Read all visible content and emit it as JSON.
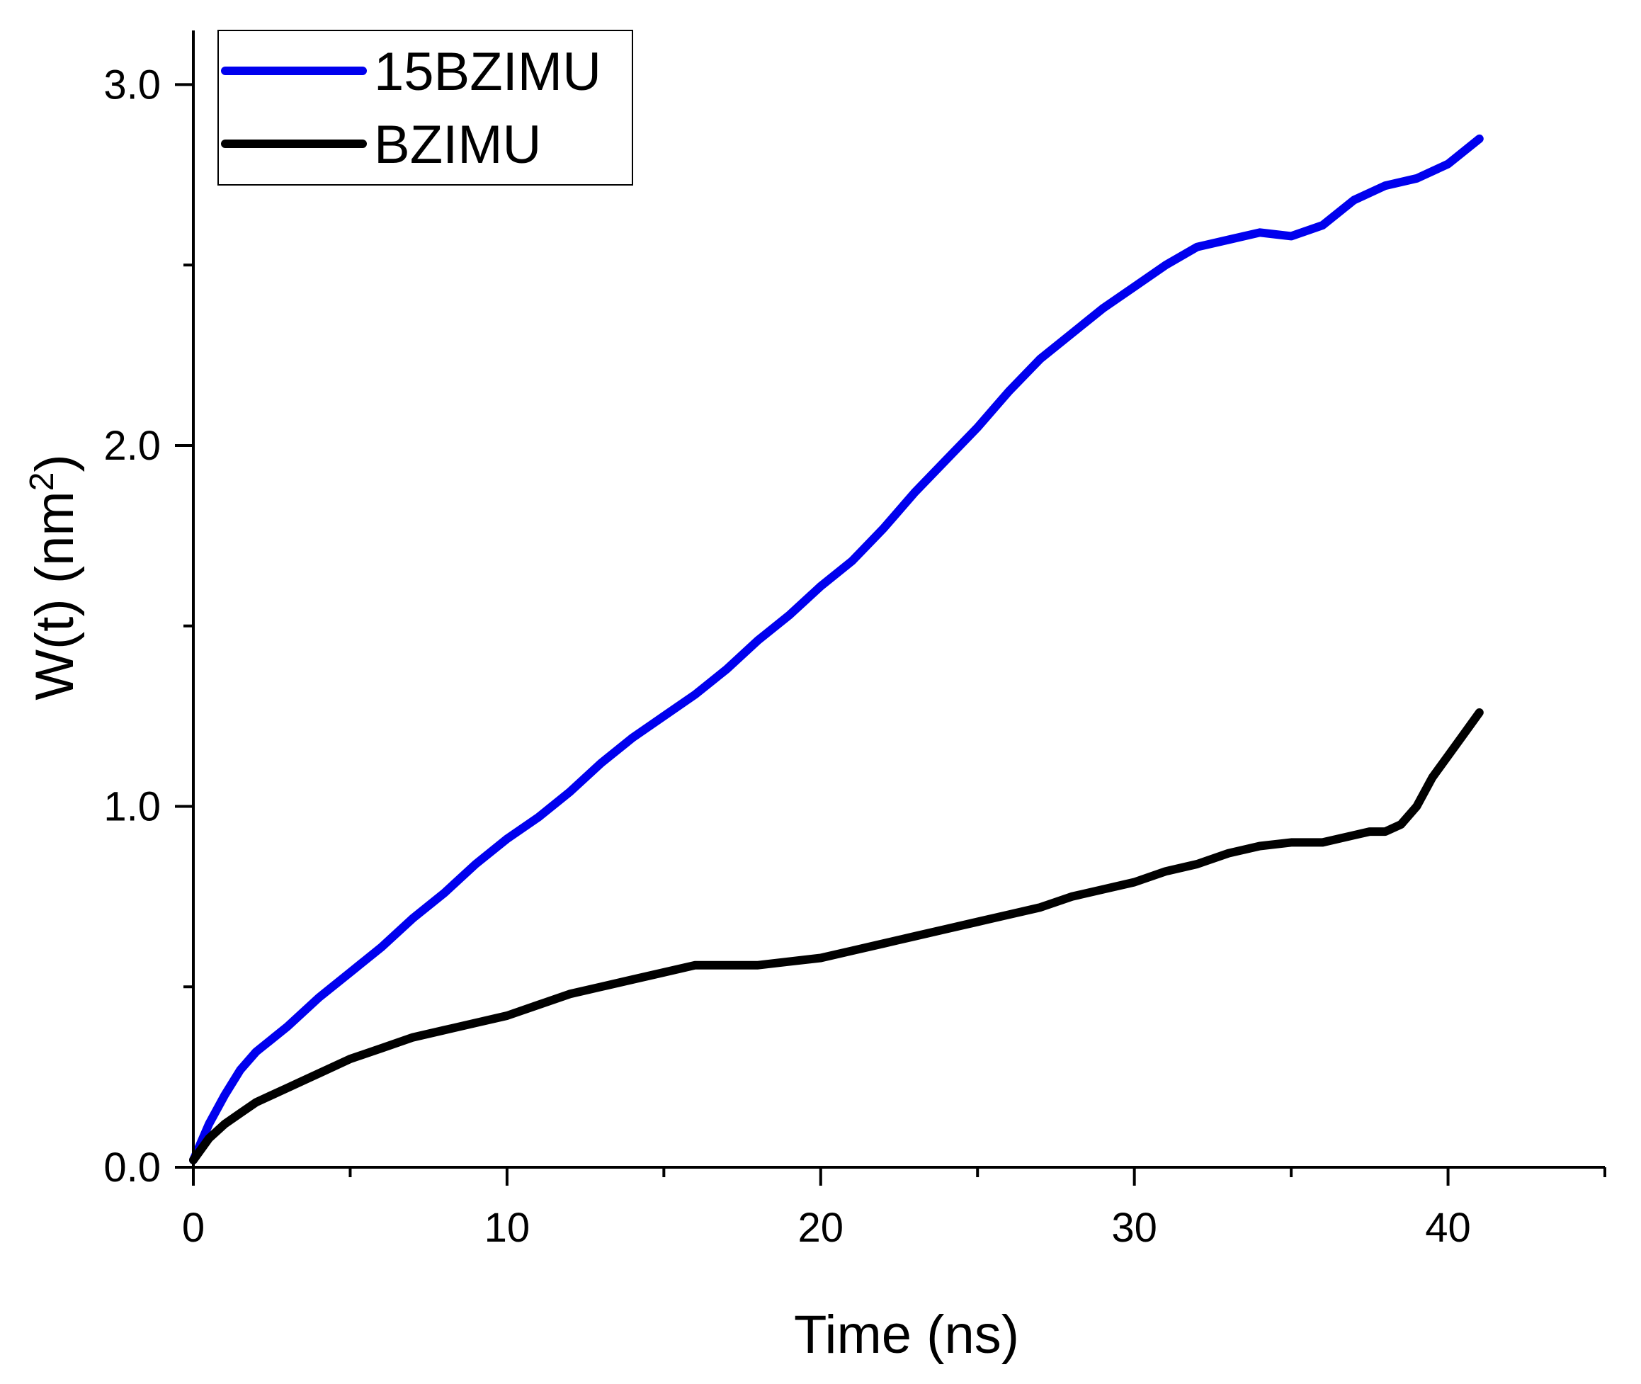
{
  "chart_data": {
    "type": "line",
    "title": "",
    "xlabel": "Time (ns)",
    "ylabel_text": "W(t) (nm",
    "ylabel_sup": "2",
    "ylabel_close": ")",
    "xlim": [
      0,
      45
    ],
    "ylim": [
      0,
      3.15
    ],
    "xticks": [
      0,
      10,
      20,
      30,
      40
    ],
    "xticks_minor": [
      5,
      15,
      25,
      35,
      45
    ],
    "yticks": [
      0.0,
      1.0,
      2.0,
      3.0
    ],
    "yticks_minor": [
      0.5,
      1.5,
      2.5
    ],
    "xtick_labels": [
      "0",
      "10",
      "20",
      "30",
      "40"
    ],
    "ytick_labels": [
      "0.0",
      "1.0",
      "2.0",
      "3.0"
    ],
    "grid": false,
    "legend_position": "top-left",
    "series": [
      {
        "name": "15BZIMU",
        "color": "#0000ee",
        "x": [
          0,
          0.5,
          1,
          1.5,
          2,
          3,
          4,
          5,
          6,
          7,
          8,
          9,
          10,
          11,
          12,
          13,
          14,
          15,
          16,
          17,
          18,
          19,
          20,
          21,
          22,
          23,
          24,
          25,
          26,
          27,
          28,
          29,
          30,
          31,
          32,
          33,
          34,
          35,
          36,
          37,
          38,
          39,
          40,
          41
        ],
        "y": [
          0.02,
          0.12,
          0.2,
          0.27,
          0.32,
          0.39,
          0.47,
          0.54,
          0.61,
          0.69,
          0.76,
          0.84,
          0.91,
          0.97,
          1.04,
          1.12,
          1.19,
          1.25,
          1.31,
          1.38,
          1.46,
          1.53,
          1.61,
          1.68,
          1.77,
          1.87,
          1.96,
          2.05,
          2.15,
          2.24,
          2.31,
          2.38,
          2.44,
          2.5,
          2.55,
          2.57,
          2.59,
          2.58,
          2.61,
          2.68,
          2.72,
          2.74,
          2.78,
          2.85
        ]
      },
      {
        "name": "BZIMU",
        "color": "#000000",
        "x": [
          0,
          0.5,
          1,
          1.5,
          2,
          3,
          4,
          5,
          6,
          7,
          8,
          9,
          10,
          11,
          12,
          13,
          14,
          15,
          16,
          17,
          18,
          19,
          20,
          21,
          22,
          23,
          24,
          25,
          26,
          27,
          28,
          29,
          30,
          31,
          32,
          33,
          34,
          35,
          36,
          37,
          37.5,
          38,
          38.5,
          39,
          39.5,
          40,
          40.5,
          41
        ],
        "y": [
          0.02,
          0.08,
          0.12,
          0.15,
          0.18,
          0.22,
          0.26,
          0.3,
          0.33,
          0.36,
          0.38,
          0.4,
          0.42,
          0.45,
          0.48,
          0.5,
          0.52,
          0.54,
          0.56,
          0.56,
          0.56,
          0.57,
          0.58,
          0.6,
          0.62,
          0.64,
          0.66,
          0.68,
          0.7,
          0.72,
          0.75,
          0.77,
          0.79,
          0.82,
          0.84,
          0.87,
          0.89,
          0.9,
          0.9,
          0.92,
          0.93,
          0.93,
          0.95,
          1.0,
          1.08,
          1.14,
          1.2,
          1.26
        ]
      }
    ]
  }
}
